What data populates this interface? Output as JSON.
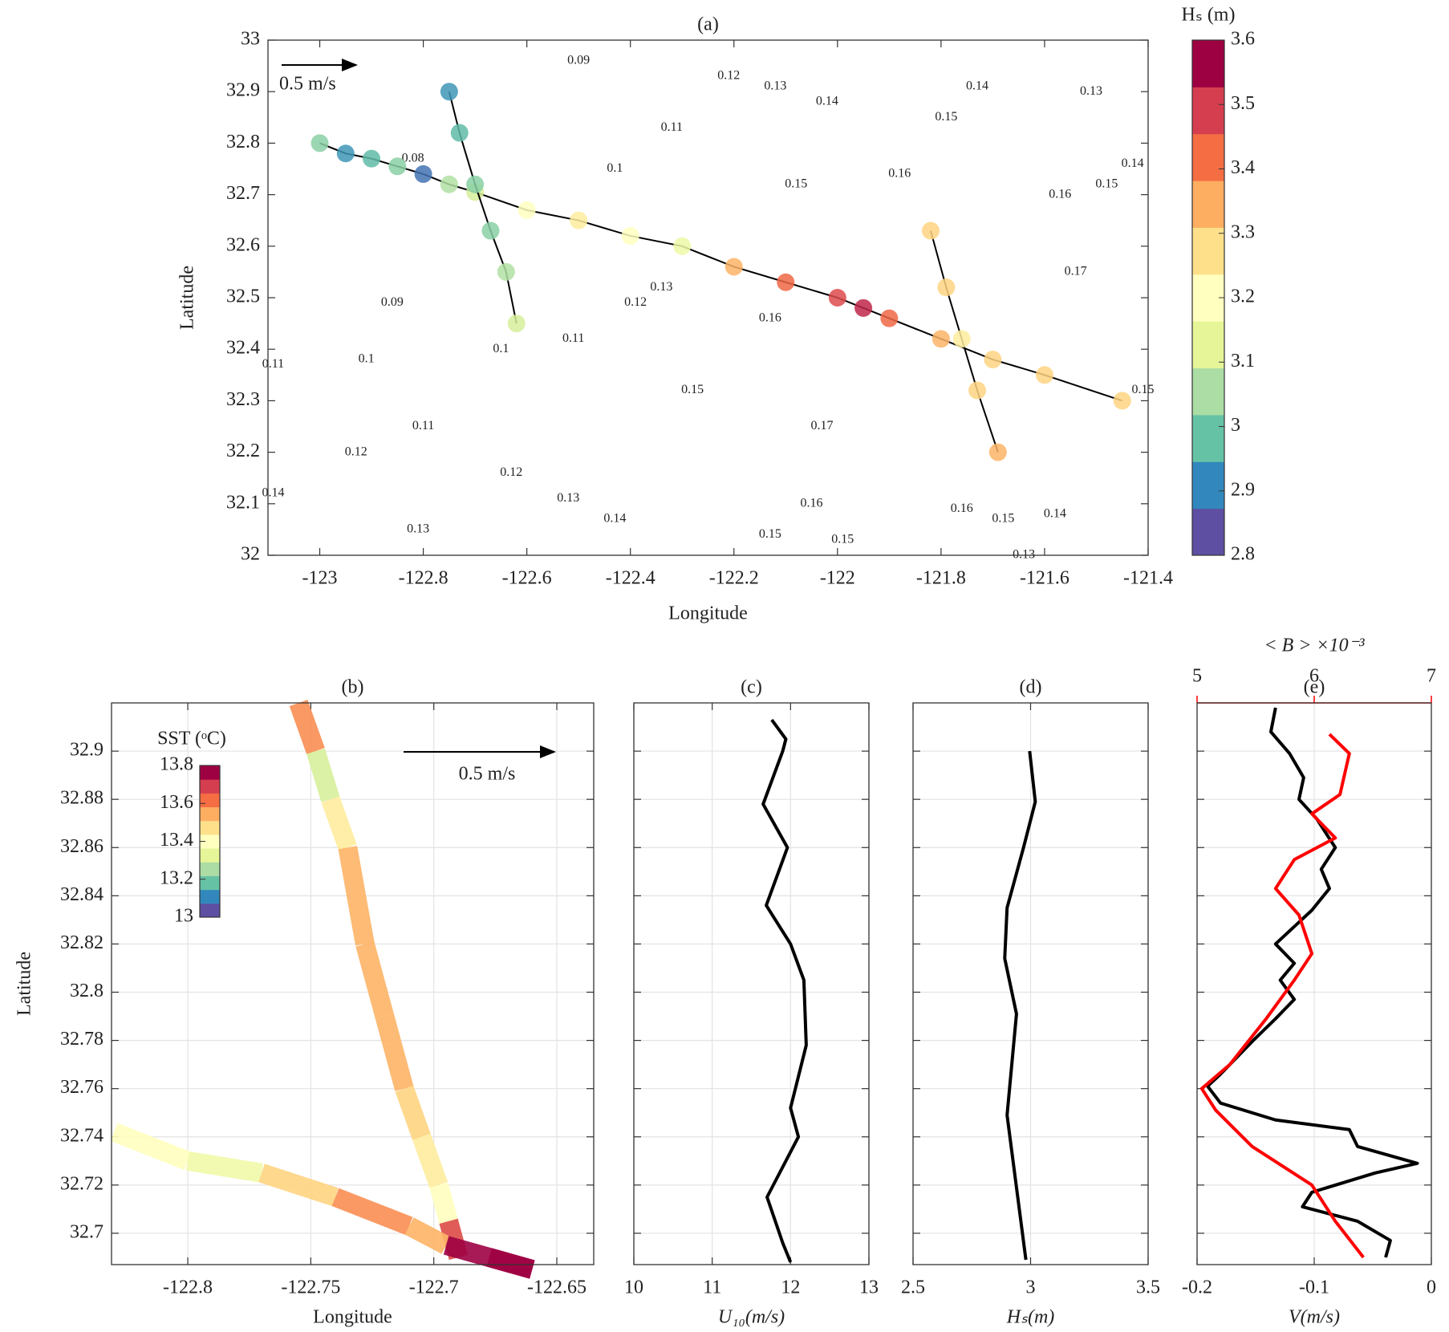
{
  "chart_data": [
    {
      "type": "map",
      "title": "(a)",
      "xlabel": "Longitude",
      "ylabel": "Latitude",
      "xlim": [
        -123.1,
        -121.4
      ],
      "xticks": [
        -123,
        -122.8,
        -122.6,
        -122.4,
        -122.2,
        -122,
        -121.8,
        -121.6,
        -121.4
      ],
      "ylim": [
        32,
        33
      ],
      "yticks": [
        32,
        32.1,
        32.2,
        32.3,
        32.4,
        32.5,
        32.6,
        32.7,
        32.8,
        32.9,
        33
      ],
      "grid": false,
      "scale_arrow_label": "0.5 m/s",
      "colorbar": {
        "title": "Hₛ (m)",
        "clim": [
          2.8,
          3.6
        ],
        "ticks": [
          2.8,
          2.9,
          3,
          3.1,
          3.2,
          3.3,
          3.4,
          3.5,
          3.6
        ],
        "colormap": [
          "#5e4fa2",
          "#3288bd",
          "#66c2a5",
          "#abdda4",
          "#e6f598",
          "#ffffbf",
          "#fee08b",
          "#fdae61",
          "#f46d43",
          "#d53e4f",
          "#9e0142"
        ]
      },
      "tracks": [
        {
          "x": [
            -123,
            -122.95,
            -122.9,
            -122.85,
            -122.8,
            -122.75,
            -122.7,
            -122.6,
            -122.5,
            -122.4,
            -122.3,
            -122.2,
            -122.1,
            -122,
            -121.95,
            -121.9,
            -121.8,
            -121.7,
            -121.6,
            -121.45
          ],
          "y": [
            32.8,
            32.78,
            32.77,
            32.755,
            32.74,
            32.72,
            32.705,
            32.67,
            32.65,
            32.62,
            32.6,
            32.56,
            32.53,
            32.5,
            32.48,
            32.46,
            32.42,
            32.38,
            32.35,
            32.3
          ],
          "values": [
            3.0,
            2.9,
            2.95,
            3.0,
            2.85,
            3.05,
            3.1,
            3.2,
            3.25,
            3.2,
            3.15,
            3.35,
            3.45,
            3.5,
            3.55,
            3.45,
            3.35,
            3.3,
            3.3,
            3.3
          ]
        },
        {
          "x": [
            -122.75,
            -122.73,
            -122.7,
            -122.67,
            -122.64,
            -122.62
          ],
          "y": [
            32.9,
            32.82,
            32.72,
            32.63,
            32.55,
            32.45
          ],
          "values": [
            2.9,
            2.95,
            3.0,
            3.0,
            3.05,
            3.1
          ]
        },
        {
          "x": [
            -121.82,
            -121.79,
            -121.76,
            -121.73,
            -121.69
          ],
          "y": [
            32.63,
            32.52,
            32.42,
            32.32,
            32.2
          ],
          "values": [
            3.3,
            3.3,
            3.25,
            3.3,
            3.35
          ]
        }
      ],
      "contour_labels": [
        {
          "x": -122.5,
          "y": 32.96,
          "value": 0.09
        },
        {
          "x": -122.21,
          "y": 32.93,
          "value": 0.12
        },
        {
          "x": -122.12,
          "y": 32.91,
          "value": 0.13
        },
        {
          "x": -122.02,
          "y": 32.88,
          "value": 0.14
        },
        {
          "x": -121.73,
          "y": 32.91,
          "value": 0.14
        },
        {
          "x": -121.51,
          "y": 32.9,
          "value": 0.13
        },
        {
          "x": -121.79,
          "y": 32.85,
          "value": 0.15
        },
        {
          "x": -122.32,
          "y": 32.83,
          "value": 0.11
        },
        {
          "x": -121.88,
          "y": 32.74,
          "value": 0.16
        },
        {
          "x": -121.43,
          "y": 32.76,
          "value": 0.14
        },
        {
          "x": -122.43,
          "y": 32.75,
          "value": 0.1
        },
        {
          "x": -121.48,
          "y": 32.72,
          "value": 0.15
        },
        {
          "x": -122.08,
          "y": 32.72,
          "value": 0.15
        },
        {
          "x": -121.57,
          "y": 32.7,
          "value": 0.16
        },
        {
          "x": -122.82,
          "y": 32.77,
          "value": 0.08
        },
        {
          "x": -121.54,
          "y": 32.55,
          "value": 0.17
        },
        {
          "x": -122.39,
          "y": 32.49,
          "value": 0.12
        },
        {
          "x": -122.34,
          "y": 32.52,
          "value": 0.13
        },
        {
          "x": -122.13,
          "y": 32.46,
          "value": 0.16
        },
        {
          "x": -122.86,
          "y": 32.49,
          "value": 0.09
        },
        {
          "x": -122.91,
          "y": 32.38,
          "value": 0.1
        },
        {
          "x": -123.09,
          "y": 32.37,
          "value": 0.11
        },
        {
          "x": -122.51,
          "y": 32.42,
          "value": 0.11
        },
        {
          "x": -122.65,
          "y": 32.4,
          "value": 0.1
        },
        {
          "x": -122.28,
          "y": 32.32,
          "value": 0.15
        },
        {
          "x": -122.03,
          "y": 32.25,
          "value": 0.17
        },
        {
          "x": -122.8,
          "y": 32.25,
          "value": 0.11
        },
        {
          "x": -122.93,
          "y": 32.2,
          "value": 0.12
        },
        {
          "x": -122.63,
          "y": 32.16,
          "value": 0.12
        },
        {
          "x": -123.09,
          "y": 32.12,
          "value": 0.14
        },
        {
          "x": -122.81,
          "y": 32.05,
          "value": 0.13
        },
        {
          "x": -122.52,
          "y": 32.11,
          "value": 0.13
        },
        {
          "x": -122.43,
          "y": 32.07,
          "value": 0.14
        },
        {
          "x": -122.05,
          "y": 32.1,
          "value": 0.16
        },
        {
          "x": -122.13,
          "y": 32.04,
          "value": 0.15
        },
        {
          "x": -121.99,
          "y": 32.03,
          "value": 0.15
        },
        {
          "x": -121.76,
          "y": 32.09,
          "value": 0.16
        },
        {
          "x": -121.68,
          "y": 32.07,
          "value": 0.15
        },
        {
          "x": -121.58,
          "y": 32.08,
          "value": 0.14
        },
        {
          "x": -121.64,
          "y": 32.0,
          "value": 0.13
        },
        {
          "x": -121.41,
          "y": 32.32,
          "value": 0.15
        }
      ]
    },
    {
      "type": "map",
      "title": "(b)",
      "xlabel": "Longitude",
      "ylabel": "Latitude",
      "xlim": [
        -122.831,
        -122.635
      ],
      "xticks": [
        -122.8,
        -122.75,
        -122.7,
        -122.65
      ],
      "ylim": [
        32.687,
        32.92
      ],
      "yticks": [
        32.7,
        32.72,
        32.74,
        32.76,
        32.78,
        32.8,
        32.82,
        32.84,
        32.86,
        32.88,
        32.9
      ],
      "grid": true,
      "scale_arrow_label": "0.5 m/s",
      "colorbar": {
        "title": "SST (ᵒC)",
        "clim": [
          13,
          13.8
        ],
        "ticks": [
          13,
          13.2,
          13.4,
          13.6,
          13.8
        ],
        "colormap": [
          "#5e4fa2",
          "#3288bd",
          "#66c2a5",
          "#abdda4",
          "#e6f598",
          "#ffffbf",
          "#fee08b",
          "#fdae61",
          "#f46d43",
          "#d53e4f",
          "#9e0142"
        ]
      },
      "tracks": [
        {
          "x": [
            -122.755,
            -122.748,
            -122.742,
            -122.735,
            -122.728,
            -122.72,
            -122.712,
            -122.705,
            -122.698,
            -122.69
          ],
          "y": [
            32.92,
            32.9,
            32.88,
            32.86,
            32.82,
            32.79,
            32.76,
            32.74,
            32.72,
            32.69
          ],
          "values": [
            13.6,
            13.3,
            13.45,
            13.55,
            13.55,
            13.55,
            13.5,
            13.45,
            13.4,
            13.7
          ]
        },
        {
          "x": [
            -122.83,
            -122.8,
            -122.77,
            -122.74,
            -122.71,
            -122.695,
            -122.66
          ],
          "y": [
            32.742,
            32.73,
            32.725,
            32.715,
            32.703,
            32.695,
            32.685
          ],
          "values": [
            13.4,
            13.35,
            13.5,
            13.6,
            13.55,
            13.8,
            13.8
          ]
        }
      ]
    },
    {
      "type": "line",
      "title": "(c)",
      "xlabel": "U₁₀(m/s)",
      "xlim": [
        10,
        13
      ],
      "xticks": [
        10,
        11,
        12,
        13
      ],
      "ylim": [
        32.687,
        32.92
      ],
      "yticks": [
        32.7,
        32.72,
        32.74,
        32.76,
        32.78,
        32.8,
        32.82,
        32.84,
        32.86,
        32.88,
        32.9
      ],
      "grid": true,
      "series": [
        {
          "color": "#000000",
          "y": [
            32.913,
            32.905,
            32.9,
            32.878,
            32.86,
            32.836,
            32.82,
            32.805,
            32.778,
            32.752,
            32.74,
            32.715,
            32.696,
            32.688
          ],
          "values": [
            11.76,
            11.94,
            11.9,
            11.65,
            11.96,
            11.69,
            12.0,
            12.17,
            12.2,
            12.0,
            12.1,
            11.7,
            11.9,
            12.0
          ]
        }
      ]
    },
    {
      "type": "line",
      "title": "(d)",
      "xlabel": "Hₛ(m)",
      "xlim": [
        2.5,
        3.5
      ],
      "xticks": [
        2.5,
        3,
        3.5
      ],
      "ylim": [
        32.687,
        32.92
      ],
      "yticks": [
        32.7,
        32.72,
        32.74,
        32.76,
        32.78,
        32.8,
        32.82,
        32.84,
        32.86,
        32.88,
        32.9
      ],
      "grid": true,
      "series": [
        {
          "color": "#000000",
          "y": [
            32.9,
            32.879,
            32.86,
            32.835,
            32.814,
            32.791,
            32.749,
            32.689
          ],
          "values": [
            2.996,
            3.02,
            2.97,
            2.9,
            2.89,
            2.94,
            2.9,
            2.98
          ]
        }
      ]
    },
    {
      "type": "line",
      "title": "(e)",
      "xlabel": "V(m/s)",
      "xlim": [
        -0.2,
        0
      ],
      "xticks": [
        -0.2,
        -0.1,
        0
      ],
      "x2label": "< B > ×10⁻³",
      "x2lim": [
        5,
        7
      ],
      "x2ticks": [
        5,
        6,
        7
      ],
      "x2color": "#ff0000",
      "ylim": [
        32.687,
        32.92
      ],
      "yticks": [
        32.7,
        32.72,
        32.74,
        32.76,
        32.78,
        32.8,
        32.82,
        32.84,
        32.86,
        32.88,
        32.9
      ],
      "grid": true,
      "series": [
        {
          "color": "#000000",
          "y": [
            32.918,
            32.908,
            32.899,
            32.889,
            32.88,
            32.872,
            32.86,
            32.851,
            32.843,
            32.834,
            32.82,
            32.812,
            32.805,
            32.797,
            32.789,
            32.78,
            32.766,
            32.761,
            32.754,
            32.747,
            32.743,
            32.736,
            32.729,
            32.725,
            32.717,
            32.711,
            32.705,
            32.697,
            32.69
          ],
          "values": [
            -0.133,
            -0.137,
            -0.121,
            -0.109,
            -0.113,
            -0.098,
            -0.082,
            -0.094,
            -0.087,
            -0.102,
            -0.133,
            -0.117,
            -0.129,
            -0.117,
            -0.133,
            -0.152,
            -0.18,
            -0.191,
            -0.18,
            -0.133,
            -0.07,
            -0.063,
            -0.012,
            -0.048,
            -0.102,
            -0.11,
            -0.063,
            -0.035,
            -0.039
          ]
        },
        {
          "color": "#ff0000",
          "axis": "x2",
          "y": [
            32.907,
            32.899,
            32.882,
            32.874,
            32.864,
            32.855,
            32.843,
            32.832,
            32.816,
            32.805,
            32.789,
            32.77,
            32.76,
            32.751,
            32.736,
            32.72,
            32.705,
            32.69
          ],
          "values": [
            6.13,
            6.3,
            6.22,
            5.98,
            6.18,
            5.83,
            5.67,
            5.87,
            5.98,
            5.83,
            5.59,
            5.28,
            5.04,
            5.16,
            5.47,
            5.98,
            6.18,
            6.42
          ]
        }
      ]
    }
  ]
}
